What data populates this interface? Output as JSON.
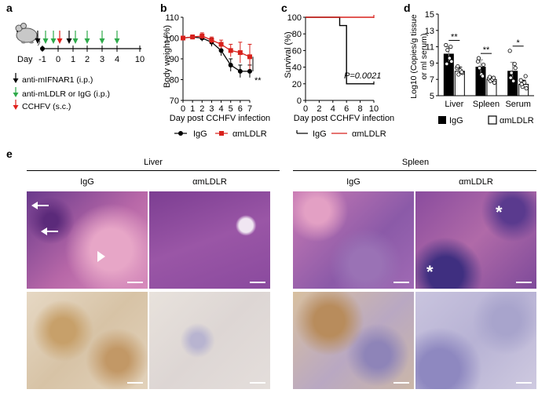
{
  "panels": {
    "a": {
      "label": "a",
      "day_label": "Day",
      "ticks": [
        "-1",
        "0",
        "1",
        "2",
        "3",
        "4",
        "10"
      ],
      "legend": [
        {
          "text": "anti-mIFNAR1 (i.p.)",
          "color": "#000000"
        },
        {
          "text": "anti-mLDLR or IgG (i.p.)",
          "color": "#2eaa4a"
        },
        {
          "text": "CCHFV (s.c.)",
          "color": "#e0201b"
        }
      ]
    },
    "b": {
      "label": "b",
      "xlabel": "Day post CCHFV infection",
      "ylabel": "Body weight (%)",
      "xticks": [
        "0",
        "1",
        "2",
        "3",
        "4",
        "5",
        "6",
        "7"
      ],
      "yticks": [
        "70",
        "80",
        "90",
        "100",
        "110"
      ],
      "signif": "**",
      "legend": [
        "IgG",
        "αmLDLR"
      ]
    },
    "c": {
      "label": "c",
      "xlabel": "Day post CCHFV infection",
      "ylabel": "Survival (%)",
      "xticks": [
        "0",
        "2",
        "4",
        "6",
        "8",
        "10"
      ],
      "yticks": [
        "0",
        "20",
        "40",
        "60",
        "80",
        "100"
      ],
      "pvalue": "P=0.0021",
      "legend": [
        "IgG",
        "αmLDLR"
      ]
    },
    "d": {
      "label": "d",
      "ylabel_line1": "Log10 (Copies/g tissue",
      "ylabel_line2": "or ml serum)",
      "yticks": [
        "5",
        "7",
        "9",
        "11",
        "13",
        "15"
      ],
      "categories": [
        "Liver",
        "Spleen",
        "Serum"
      ],
      "signif": [
        "**",
        "**",
        "*"
      ],
      "legend": [
        "IgG",
        "αmLDLR"
      ]
    },
    "e": {
      "label": "e",
      "group_left": "Liver",
      "group_right": "Spleen",
      "col_labels": [
        "IgG",
        "αmLDLR",
        "IgG",
        "αmLDLR"
      ]
    }
  },
  "chart_data": [
    {
      "type": "line",
      "title": "",
      "xlabel": "Day post CCHFV infection",
      "ylabel": "Body weight (%)",
      "xlim": [
        0,
        7
      ],
      "ylim": [
        70,
        110
      ],
      "grid": false,
      "legend_placement": "bottom",
      "series": [
        {
          "name": "IgG",
          "color": "#000000",
          "marker": "circle",
          "x": [
            0,
            1,
            2,
            3,
            4,
            5,
            6,
            7
          ],
          "y": [
            100,
            100.5,
            100,
            98,
            94,
            87,
            84,
            84
          ],
          "err": [
            0.5,
            1,
            1.5,
            2,
            2.5,
            3,
            3,
            3
          ]
        },
        {
          "name": "αmLDLR",
          "color": "#d8211c",
          "marker": "square",
          "x": [
            0,
            1,
            2,
            3,
            4,
            5,
            6,
            7
          ],
          "y": [
            100,
            100.5,
            101,
            99,
            97,
            94,
            93,
            91
          ],
          "err": [
            0.5,
            1,
            1.5,
            1.5,
            2,
            3,
            5,
            6
          ]
        }
      ]
    },
    {
      "type": "line",
      "title": "",
      "xlabel": "Day post CCHFV infection",
      "ylabel": "Survival (%)",
      "xlim": [
        0,
        10
      ],
      "ylim": [
        0,
        100
      ],
      "grid": false,
      "legend_placement": "bottom",
      "series": [
        {
          "name": "IgG",
          "color": "#000000",
          "x": [
            0,
            5,
            5,
            6,
            6,
            10
          ],
          "y": [
            100,
            100,
            90,
            90,
            20,
            20
          ]
        },
        {
          "name": "αmLDLR",
          "color": "#d8211c",
          "x": [
            0,
            10
          ],
          "y": [
            100,
            100
          ]
        }
      ]
    },
    {
      "type": "bar",
      "title": "",
      "ylabel": "Log10 (Copies/g tissue or ml serum)",
      "ylim": [
        5,
        15
      ],
      "grid": false,
      "legend_placement": "bottom",
      "categories": [
        "Liver",
        "Spleen",
        "Serum"
      ],
      "series": [
        {
          "name": "IgG",
          "fill": "#000000",
          "values": [
            10.1,
            8.5,
            8.0
          ],
          "err": [
            0.9,
            0.9,
            1.1
          ],
          "points": [
            [
              11.2,
              10.6,
              9.6,
              9.2,
              8.9,
              11.0
            ],
            [
              9.2,
              8.4,
              7.6,
              8.8,
              9.6,
              7.4
            ],
            [
              10.5,
              7.8,
              6.8,
              8.4,
              7.2,
              8.9
            ]
          ]
        },
        {
          "name": "αmLDLR",
          "fill": "#ffffff",
          "values": [
            8.0,
            7.0,
            6.4
          ],
          "err": [
            0.5,
            0.3,
            0.5
          ],
          "points": [
            [
              8.4,
              7.6,
              8.1,
              7.8,
              8.6,
              7.9
            ],
            [
              7.1,
              6.8,
              7.0,
              6.6,
              7.3,
              7.2
            ],
            [
              6.9,
              6.1,
              6.6,
              5.9,
              6.4,
              7.4
            ]
          ]
        }
      ]
    }
  ]
}
